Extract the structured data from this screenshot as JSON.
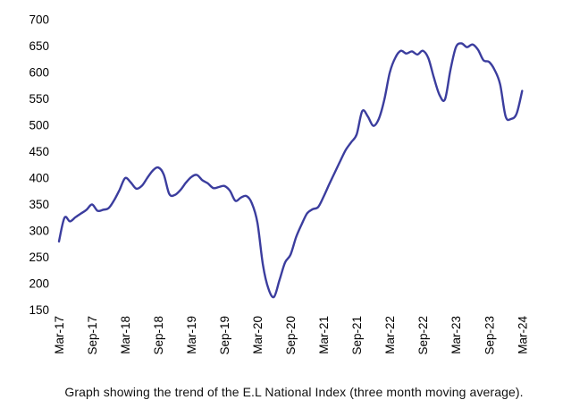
{
  "caption": "Graph showing the trend of the E.L National Index (three month moving average).",
  "chart_data": {
    "type": "line",
    "title": "",
    "xlabel": "",
    "ylabel": "",
    "grid": false,
    "legend": false,
    "line_color": "#3b3d9e",
    "ylim": [
      150,
      700
    ],
    "y_ticks": [
      700,
      650,
      600,
      550,
      500,
      450,
      400,
      350,
      300,
      250,
      200,
      150
    ],
    "x_tick_labels": [
      "Mar-17",
      "Sep-17",
      "Mar-18",
      "Sep-18",
      "Mar-19",
      "Sep-19",
      "Mar-20",
      "Sep-20",
      "Mar-21",
      "Sep-21",
      "Mar-22",
      "Sep-22",
      "Mar-23",
      "Sep-23",
      "Mar-24"
    ],
    "series": [
      {
        "name": "E.L National Index (three month moving average)",
        "x_first": "Mar-17",
        "x_last": "Mar-24",
        "interval": "monthly",
        "values": [
          280,
          325,
          318,
          326,
          333,
          340,
          350,
          338,
          340,
          343,
          358,
          378,
          400,
          392,
          380,
          385,
          400,
          414,
          420,
          407,
          370,
          368,
          377,
          391,
          402,
          406,
          396,
          390,
          381,
          383,
          385,
          376,
          357,
          363,
          366,
          352,
          315,
          235,
          190,
          175,
          207,
          240,
          255,
          288,
          312,
          333,
          341,
          345,
          365,
          388,
          410,
          432,
          453,
          468,
          483,
          527,
          517,
          499,
          512,
          548,
          600,
          628,
          641,
          636,
          640,
          634,
          641,
          627,
          590,
          558,
          549,
          605,
          648,
          655,
          648,
          653,
          643,
          623,
          620,
          605,
          578,
          517,
          512,
          522,
          565
        ]
      }
    ]
  }
}
